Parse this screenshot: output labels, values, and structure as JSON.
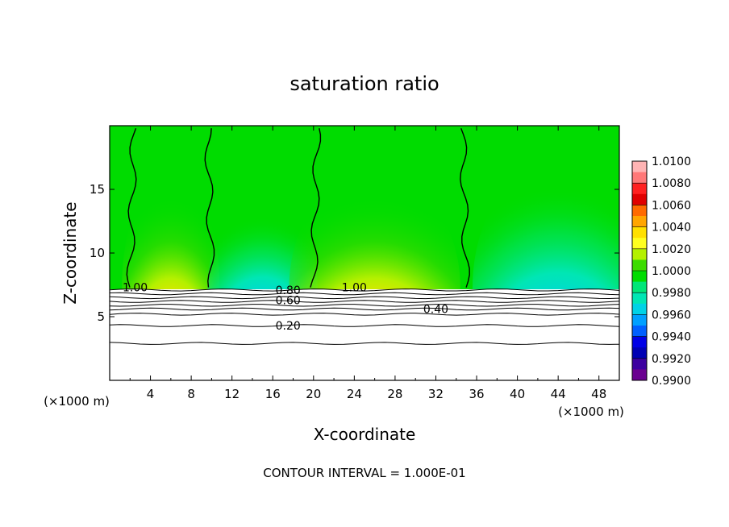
{
  "chart_data": {
    "type": "heatmap",
    "title": "saturation ratio",
    "xlabel": "X-coordinate",
    "ylabel": "Z-coordinate",
    "x_unit_left": "(×1000 m)",
    "x_unit_right": "(×1000 m)",
    "footer": "CONTOUR INTERVAL = 1.000E-01",
    "xlim": [
      0,
      50
    ],
    "ylim": [
      0,
      20
    ],
    "x_ticks": [
      4,
      8,
      12,
      16,
      20,
      24,
      28,
      32,
      36,
      40,
      44,
      48
    ],
    "x_tick_labels": [
      "4",
      "8",
      "12",
      "16",
      "20",
      "24",
      "28",
      "32",
      "36",
      "40",
      "44",
      "48"
    ],
    "y_ticks": [
      5,
      10,
      15
    ],
    "y_tick_labels": [
      "5",
      "10",
      "15"
    ],
    "colorbar": {
      "min": 0.99,
      "max": 1.01,
      "labels": [
        "1.0100",
        "1.0080",
        "1.0060",
        "1.0040",
        "1.0020",
        "1.0000",
        "0.9980",
        "0.9960",
        "0.9940",
        "0.9920",
        "0.9900"
      ],
      "colors": [
        "#ffb4b4",
        "#ff7878",
        "#ff2020",
        "#e00000",
        "#ff6a00",
        "#ffa500",
        "#ffe000",
        "#ffff20",
        "#b4f000",
        "#3cdc00",
        "#00dc00",
        "#00e678",
        "#00e6b4",
        "#00d2e6",
        "#00a0ff",
        "#0060ff",
        "#0000e6",
        "#0000b4",
        "#3c00a0",
        "#6a0090"
      ]
    },
    "cloud_top_z": 7.3,
    "contour_labels": [
      {
        "text": "1.00",
        "x": 2.5,
        "z": 7.3
      },
      {
        "text": "0.80",
        "x": 17.5,
        "z": 7.1
      },
      {
        "text": "0.60",
        "x": 17.5,
        "z": 6.3
      },
      {
        "text": "1.00",
        "x": 24.0,
        "z": 7.3
      },
      {
        "text": "0.40",
        "x": 32.0,
        "z": 5.6
      },
      {
        "text": "0.20",
        "x": 17.5,
        "z": 4.3
      }
    ],
    "contour_levels_below": [
      7.1,
      6.8,
      6.5,
      6.2,
      5.9,
      5.6,
      5.2,
      4.3,
      2.9
    ],
    "saturation_boundaries_x": [
      2.0,
      10.0,
      20.0,
      35.0
    ]
  }
}
